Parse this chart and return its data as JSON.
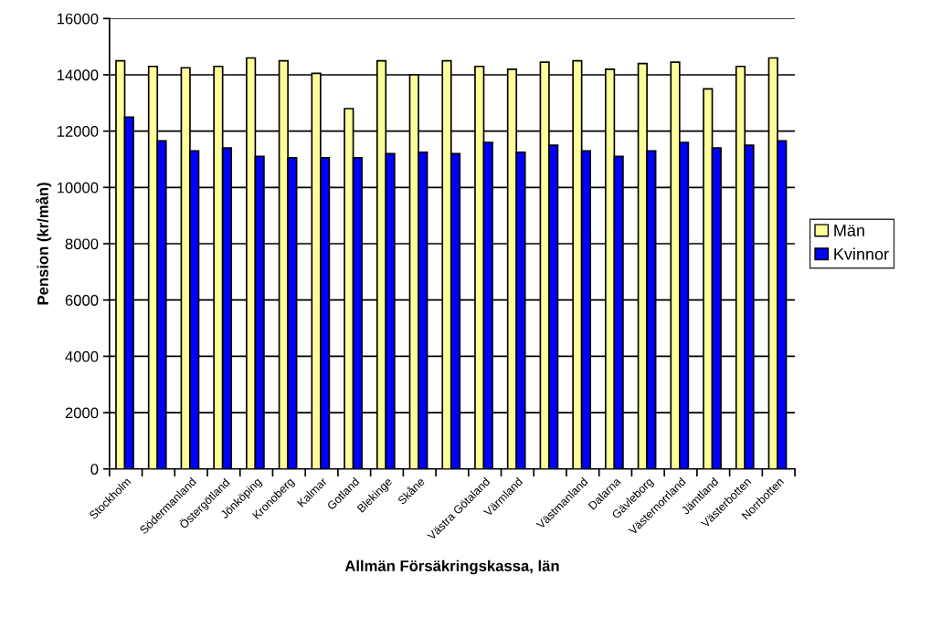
{
  "chart_data": {
    "type": "bar",
    "xlabel": "Allmän Försäkringskassa, län",
    "ylabel": "Pension (kr/mån)",
    "categories": [
      "Stockholm",
      null,
      "Södermanland",
      "Östergötland",
      "Jönköping",
      "Kronoberg",
      "Kalmar",
      "Gotland",
      "Blekinge",
      "Skåne",
      null,
      "Västra Götaland",
      "Värmland",
      null,
      "Västmanland",
      "Dalarna",
      "Gävleborg",
      "Västernorrland",
      "Jämtland",
      "Västerbotten",
      "Norrbotten"
    ],
    "series": [
      {
        "name": "Män",
        "color": "#ffff99",
        "values": [
          14500,
          14300,
          14250,
          14300,
          14600,
          14500,
          14050,
          12800,
          14500,
          14000,
          14500,
          14300,
          14200,
          14450,
          14500,
          14200,
          14400,
          14450,
          13500,
          14300,
          14600
        ]
      },
      {
        "name": "Kvinnor",
        "color": "#0000ff",
        "values": [
          12500,
          11650,
          11300,
          11400,
          11100,
          11050,
          11050,
          11050,
          11200,
          11250,
          11200,
          11600,
          11250,
          11500,
          11300,
          11100,
          11300,
          11600,
          11400,
          11500,
          11650
        ]
      }
    ],
    "ylim": [
      0,
      16000
    ],
    "yticks": [
      0,
      2000,
      4000,
      6000,
      8000,
      10000,
      12000,
      14000,
      16000
    ],
    "grid": "y",
    "legend": "right"
  }
}
